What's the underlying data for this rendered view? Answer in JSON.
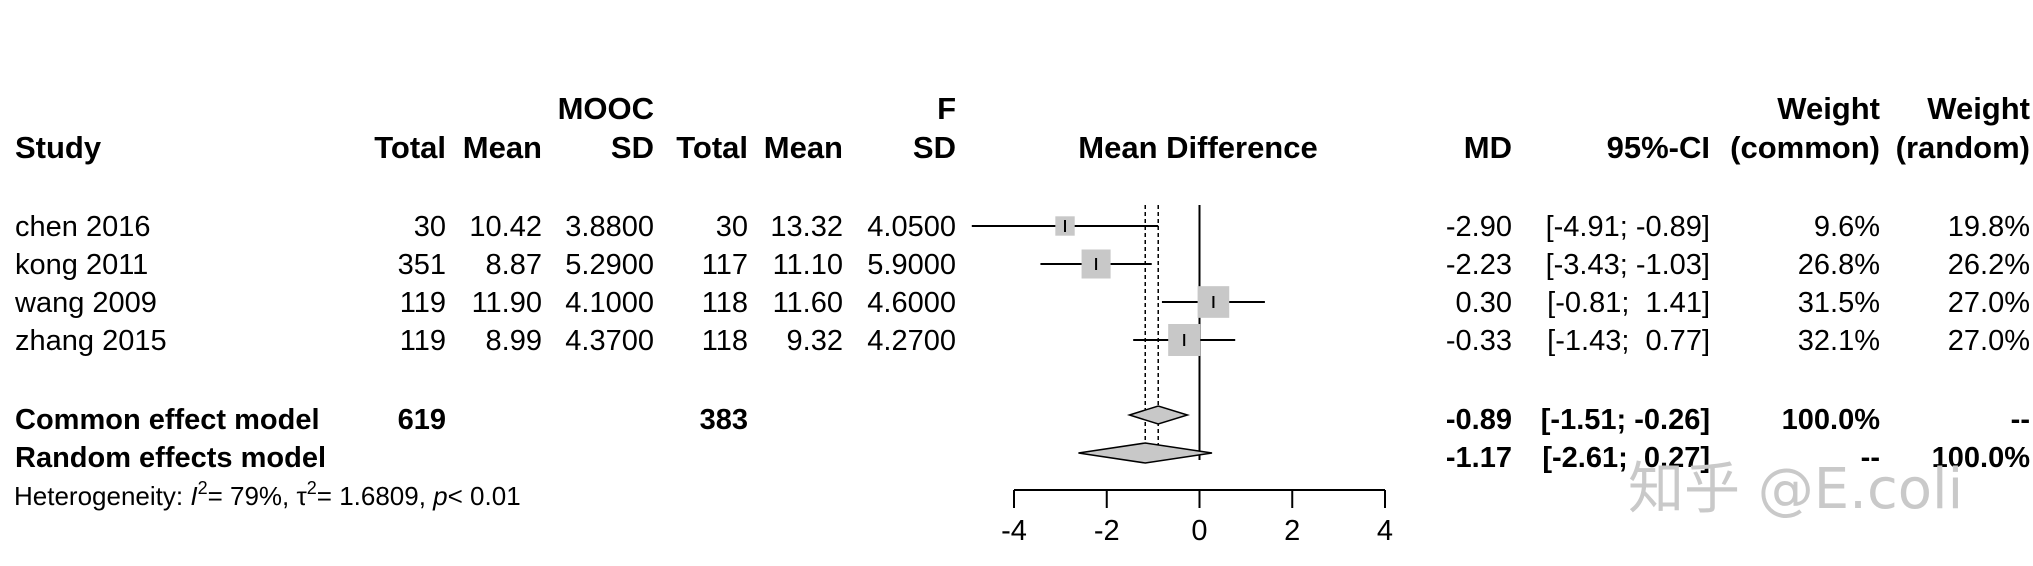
{
  "headers": {
    "study": "Study",
    "group1_title": "MOOC",
    "group2_title": "F",
    "total": "Total",
    "mean": "Mean",
    "sd": "SD",
    "effect": "Mean Difference",
    "md": "MD",
    "ci": "95%-CI",
    "weight": "Weight",
    "weight_common": "(common)",
    "weight_random": "(random)"
  },
  "studies": [
    {
      "study": "chen 2016",
      "n1": "30",
      "mean1": "10.42",
      "sd1": "3.8800",
      "n2": "30",
      "mean2": "13.32",
      "sd2": "4.0500",
      "md_text": "-2.90",
      "ci_text": "[-4.91; -0.89]",
      "w_common": "9.6%",
      "w_random": "19.8%",
      "md": -2.9,
      "lower": -4.91,
      "upper": -0.89,
      "weight": 9.6
    },
    {
      "study": "kong 2011",
      "n1": "351",
      "mean1": "8.87",
      "sd1": "5.2900",
      "n2": "117",
      "mean2": "11.10",
      "sd2": "5.9000",
      "md_text": "-2.23",
      "ci_text": "[-3.43; -1.03]",
      "w_common": "26.8%",
      "w_random": "26.2%",
      "md": -2.23,
      "lower": -3.43,
      "upper": -1.03,
      "weight": 26.8
    },
    {
      "study": "wang 2009",
      "n1": "119",
      "mean1": "11.90",
      "sd1": "4.1000",
      "n2": "118",
      "mean2": "11.60",
      "sd2": "4.6000",
      "md_text": "0.30",
      "ci_text": "[-0.81;  1.41]",
      "w_common": "31.5%",
      "w_random": "27.0%",
      "md": 0.3,
      "lower": -0.81,
      "upper": 1.41,
      "weight": 31.5
    },
    {
      "study": "zhang 2015",
      "n1": "119",
      "mean1": "8.99",
      "sd1": "4.3700",
      "n2": "118",
      "mean2": "9.32",
      "sd2": "4.2700",
      "md_text": "-0.33",
      "ci_text": "[-1.43;  0.77]",
      "w_common": "32.1%",
      "w_random": "27.0%",
      "md": -0.33,
      "lower": -1.43,
      "upper": 0.77,
      "weight": 32.1
    }
  ],
  "common_model": {
    "label": "Common effect model",
    "n1": "619",
    "n2": "383",
    "md_text": "-0.89",
    "ci_text": "[-1.51; -0.26]",
    "w_common": "100.0%",
    "w_random": "--",
    "md": -0.89,
    "lower": -1.51,
    "upper": -0.26
  },
  "random_model": {
    "label": "Random effects model",
    "md_text": "-1.17",
    "ci_text": "[-2.61;  0.27]",
    "w_common": "--",
    "w_random": "100.0%",
    "md": -1.17,
    "lower": -2.61,
    "upper": 0.27
  },
  "heterogeneity": {
    "prefix": "Heterogeneity: ",
    "i2": "= 79%, ",
    "tau2": "= 1.6809, ",
    "p": "< 0.01"
  },
  "watermark": "知乎 @E.coli",
  "chart_data": {
    "type": "forest",
    "xlabel": "",
    "xlim": [
      -4,
      4
    ],
    "ticks": [
      -4,
      -2,
      0,
      2,
      4
    ],
    "tick_labels": [
      "-4",
      "-2",
      "0",
      "2",
      "4"
    ],
    "reference_line": 0,
    "series": [
      {
        "name": "chen 2016",
        "md": -2.9,
        "lower": -4.91,
        "upper": -0.89,
        "weight": 9.6
      },
      {
        "name": "kong 2011",
        "md": -2.23,
        "lower": -3.43,
        "upper": -1.03,
        "weight": 26.8
      },
      {
        "name": "wang 2009",
        "md": 0.3,
        "lower": -0.81,
        "upper": 1.41,
        "weight": 31.5
      },
      {
        "name": "zhang 2015",
        "md": -0.33,
        "lower": -1.43,
        "upper": 0.77,
        "weight": 32.1
      }
    ],
    "pooled": [
      {
        "name": "Common effect model",
        "md": -0.89,
        "lower": -1.51,
        "upper": -0.26
      },
      {
        "name": "Random effects model",
        "md": -1.17,
        "lower": -2.61,
        "upper": 0.27
      }
    ]
  },
  "colors": {
    "square": "#c8c8c8",
    "diamond": "#c8c8c8",
    "line": "#000000",
    "watermark": "#c9c9c9"
  }
}
